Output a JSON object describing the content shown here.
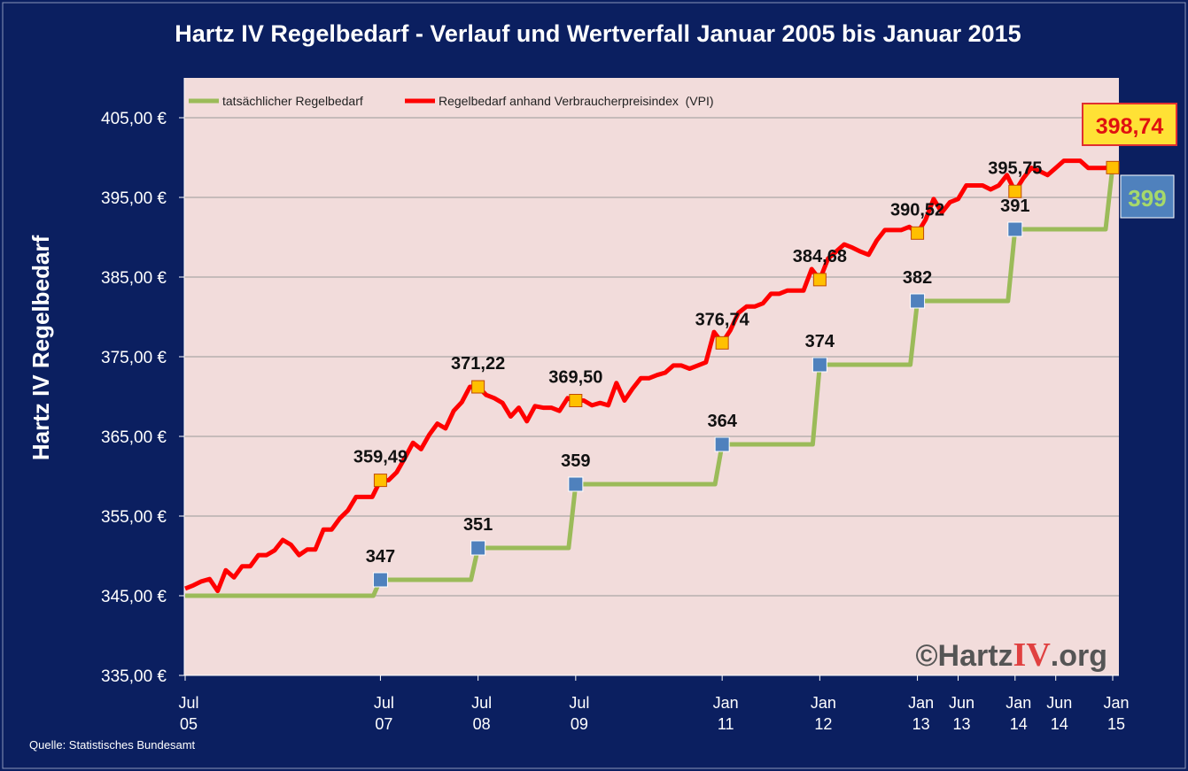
{
  "chart_data": {
    "type": "line",
    "title": "Hartz IV Regelbedarf - Verlauf und Wertverfall Januar 2005 bis Januar 2015",
    "ylabel": "Hartz IV Regelbedarf",
    "xlabel": "",
    "source": "Quelle: Statistisches Bundesamt",
    "ylim": [
      335,
      410
    ],
    "y_ticks": [
      "335,00 €",
      "345,00 €",
      "355,00 €",
      "365,00 €",
      "375,00 €",
      "385,00 €",
      "395,00 €",
      "405,00 €"
    ],
    "y_tick_values": [
      335,
      345,
      355,
      365,
      375,
      385,
      395,
      405
    ],
    "x_ticks": [
      {
        "date": "2005-07",
        "label": "Jul",
        "year": "05"
      },
      {
        "date": "2007-07",
        "label": "Jul",
        "year": "07"
      },
      {
        "date": "2008-07",
        "label": "Jul",
        "year": "08"
      },
      {
        "date": "2009-07",
        "label": "Jul",
        "year": "09"
      },
      {
        "date": "2011-01",
        "label": "Jan",
        "year": "11"
      },
      {
        "date": "2012-01",
        "label": "Jan",
        "year": "12"
      },
      {
        "date": "2013-01",
        "label": "Jan",
        "year": "13"
      },
      {
        "date": "2013-06",
        "label": "Jun",
        "year": "13"
      },
      {
        "date": "2014-01",
        "label": "Jan",
        "year": "14"
      },
      {
        "date": "2014-06",
        "label": "Jun",
        "year": "14"
      },
      {
        "date": "2015-01",
        "label": "Jan",
        "year": "15"
      }
    ],
    "grid": true,
    "legend_position": "top-left",
    "series": [
      {
        "name": "tatsächlicher Regelbedarf",
        "color": "#9bbb59",
        "marker_color": "#4f81bd",
        "step": true,
        "points": [
          {
            "x": "2005-07",
            "y": 345
          },
          {
            "x": "2007-07",
            "y": 347
          },
          {
            "x": "2008-07",
            "y": 351
          },
          {
            "x": "2009-07",
            "y": 359
          },
          {
            "x": "2011-01",
            "y": 364
          },
          {
            "x": "2012-01",
            "y": 374
          },
          {
            "x": "2013-01",
            "y": 382
          },
          {
            "x": "2014-01",
            "y": 391
          },
          {
            "x": "2015-01",
            "y": 399
          }
        ],
        "markers": [
          {
            "x": "2007-07",
            "y": 347,
            "label": "347"
          },
          {
            "x": "2008-07",
            "y": 351,
            "label": "351"
          },
          {
            "x": "2009-07",
            "y": 359,
            "label": "359"
          },
          {
            "x": "2011-01",
            "y": 364,
            "label": "364"
          },
          {
            "x": "2012-01",
            "y": 374,
            "label": "374"
          },
          {
            "x": "2013-01",
            "y": 382,
            "label": "382"
          },
          {
            "x": "2014-01",
            "y": 391,
            "label": "391"
          }
        ],
        "end_label": "399"
      },
      {
        "name": "Regelbedarf anhand Verbraucherpreisindex  (VPI)",
        "color": "#ff0000",
        "marker_color": "#ffc000",
        "points": [
          {
            "x": "2005-07",
            "y": 345.9
          },
          {
            "x": "2005-08",
            "y": 346.3
          },
          {
            "x": "2005-09",
            "y": 346.8
          },
          {
            "x": "2005-10",
            "y": 347.1
          },
          {
            "x": "2005-11",
            "y": 345.6
          },
          {
            "x": "2005-12",
            "y": 348.2
          },
          {
            "x": "2006-01",
            "y": 347.3
          },
          {
            "x": "2006-02",
            "y": 348.7
          },
          {
            "x": "2006-03",
            "y": 348.7
          },
          {
            "x": "2006-04",
            "y": 350.1
          },
          {
            "x": "2006-05",
            "y": 350.1
          },
          {
            "x": "2006-06",
            "y": 350.7
          },
          {
            "x": "2006-07",
            "y": 352.0
          },
          {
            "x": "2006-08",
            "y": 351.4
          },
          {
            "x": "2006-09",
            "y": 350.1
          },
          {
            "x": "2006-10",
            "y": 350.8
          },
          {
            "x": "2006-11",
            "y": 350.8
          },
          {
            "x": "2006-12",
            "y": 353.3
          },
          {
            "x": "2007-01",
            "y": 353.3
          },
          {
            "x": "2007-02",
            "y": 354.7
          },
          {
            "x": "2007-03",
            "y": 355.7
          },
          {
            "x": "2007-04",
            "y": 357.4
          },
          {
            "x": "2007-05",
            "y": 357.4
          },
          {
            "x": "2007-06",
            "y": 357.4
          },
          {
            "x": "2007-07",
            "y": 359.49
          },
          {
            "x": "2007-08",
            "y": 359.5
          },
          {
            "x": "2007-09",
            "y": 360.5
          },
          {
            "x": "2007-10",
            "y": 362.3
          },
          {
            "x": "2007-11",
            "y": 364.2
          },
          {
            "x": "2007-12",
            "y": 363.4
          },
          {
            "x": "2008-01",
            "y": 365.2
          },
          {
            "x": "2008-02",
            "y": 366.6
          },
          {
            "x": "2008-03",
            "y": 366.0
          },
          {
            "x": "2008-04",
            "y": 368.2
          },
          {
            "x": "2008-05",
            "y": 369.3
          },
          {
            "x": "2008-06",
            "y": 371.22
          },
          {
            "x": "2008-07",
            "y": 371.22
          },
          {
            "x": "2008-08",
            "y": 370.2
          },
          {
            "x": "2008-09",
            "y": 369.8
          },
          {
            "x": "2008-10",
            "y": 369.2
          },
          {
            "x": "2008-11",
            "y": 367.5
          },
          {
            "x": "2008-12",
            "y": 368.6
          },
          {
            "x": "2009-01",
            "y": 366.9
          },
          {
            "x": "2009-02",
            "y": 368.8
          },
          {
            "x": "2009-03",
            "y": 368.6
          },
          {
            "x": "2009-04",
            "y": 368.6
          },
          {
            "x": "2009-05",
            "y": 368.2
          },
          {
            "x": "2009-06",
            "y": 369.8
          },
          {
            "x": "2009-07",
            "y": 369.5
          },
          {
            "x": "2009-08",
            "y": 369.5
          },
          {
            "x": "2009-09",
            "y": 368.9
          },
          {
            "x": "2009-10",
            "y": 369.2
          },
          {
            "x": "2009-11",
            "y": 368.9
          },
          {
            "x": "2009-12",
            "y": 371.7
          },
          {
            "x": "2010-01",
            "y": 369.5
          },
          {
            "x": "2010-02",
            "y": 371.0
          },
          {
            "x": "2010-03",
            "y": 372.3
          },
          {
            "x": "2010-04",
            "y": 372.3
          },
          {
            "x": "2010-05",
            "y": 372.7
          },
          {
            "x": "2010-06",
            "y": 373.0
          },
          {
            "x": "2010-07",
            "y": 373.9
          },
          {
            "x": "2010-08",
            "y": 373.9
          },
          {
            "x": "2010-09",
            "y": 373.5
          },
          {
            "x": "2010-10",
            "y": 373.9
          },
          {
            "x": "2010-11",
            "y": 374.3
          },
          {
            "x": "2010-12",
            "y": 378.1
          },
          {
            "x": "2011-01",
            "y": 376.74
          },
          {
            "x": "2011-02",
            "y": 378.3
          },
          {
            "x": "2011-03",
            "y": 380.5
          },
          {
            "x": "2011-04",
            "y": 381.3
          },
          {
            "x": "2011-05",
            "y": 381.3
          },
          {
            "x": "2011-06",
            "y": 381.7
          },
          {
            "x": "2011-07",
            "y": 382.9
          },
          {
            "x": "2011-08",
            "y": 382.9
          },
          {
            "x": "2011-09",
            "y": 383.3
          },
          {
            "x": "2011-10",
            "y": 383.3
          },
          {
            "x": "2011-11",
            "y": 383.3
          },
          {
            "x": "2011-12",
            "y": 386.0
          },
          {
            "x": "2012-01",
            "y": 384.68
          },
          {
            "x": "2012-02",
            "y": 387.3
          },
          {
            "x": "2012-03",
            "y": 388.2
          },
          {
            "x": "2012-04",
            "y": 389.1
          },
          {
            "x": "2012-05",
            "y": 388.7
          },
          {
            "x": "2012-06",
            "y": 388.2
          },
          {
            "x": "2012-07",
            "y": 387.8
          },
          {
            "x": "2012-08",
            "y": 389.6
          },
          {
            "x": "2012-09",
            "y": 390.9
          },
          {
            "x": "2012-10",
            "y": 390.9
          },
          {
            "x": "2012-11",
            "y": 390.9
          },
          {
            "x": "2012-12",
            "y": 391.3
          },
          {
            "x": "2013-01",
            "y": 390.52
          },
          {
            "x": "2013-02",
            "y": 392.2
          },
          {
            "x": "2013-03",
            "y": 394.8
          },
          {
            "x": "2013-04",
            "y": 393.1
          },
          {
            "x": "2013-05",
            "y": 394.4
          },
          {
            "x": "2013-06",
            "y": 394.8
          },
          {
            "x": "2013-07",
            "y": 396.5
          },
          {
            "x": "2013-08",
            "y": 396.5
          },
          {
            "x": "2013-09",
            "y": 396.5
          },
          {
            "x": "2013-10",
            "y": 396.0
          },
          {
            "x": "2013-11",
            "y": 396.5
          },
          {
            "x": "2013-12",
            "y": 397.8
          },
          {
            "x": "2014-01",
            "y": 395.75
          },
          {
            "x": "2014-02",
            "y": 397.4
          },
          {
            "x": "2014-03",
            "y": 398.7
          },
          {
            "x": "2014-04",
            "y": 398.3
          },
          {
            "x": "2014-05",
            "y": 397.8
          },
          {
            "x": "2014-06",
            "y": 398.7
          },
          {
            "x": "2014-07",
            "y": 399.6
          },
          {
            "x": "2014-08",
            "y": 399.6
          },
          {
            "x": "2014-09",
            "y": 399.6
          },
          {
            "x": "2014-10",
            "y": 398.7
          },
          {
            "x": "2014-11",
            "y": 398.7
          },
          {
            "x": "2014-12",
            "y": 398.7
          },
          {
            "x": "2015-01",
            "y": 398.74
          }
        ],
        "markers": [
          {
            "x": "2007-07",
            "y": 359.49,
            "label": "359,49"
          },
          {
            "x": "2008-07",
            "y": 371.22,
            "label": "371,22"
          },
          {
            "x": "2009-07",
            "y": 369.5,
            "label": "369,50"
          },
          {
            "x": "2011-01",
            "y": 376.74,
            "label": "376,74"
          },
          {
            "x": "2012-01",
            "y": 384.68,
            "label": "384,68"
          },
          {
            "x": "2013-01",
            "y": 390.52,
            "label": "390,52"
          },
          {
            "x": "2014-01",
            "y": 395.75,
            "label": "395,75"
          },
          {
            "x": "2015-01",
            "y": 398.74,
            "label": ""
          }
        ],
        "end_label": "398,74"
      }
    ]
  },
  "watermark": {
    "prefix": "©Hartz",
    "highlight": "IV",
    "suffix": ".org"
  }
}
